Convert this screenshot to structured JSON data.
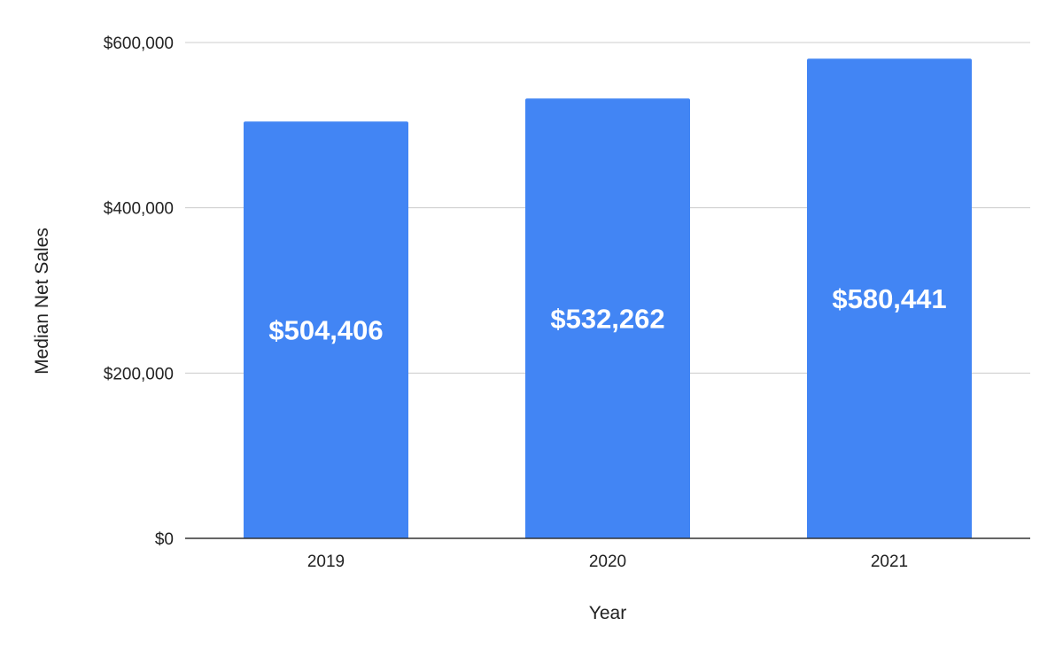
{
  "chart_data": {
    "type": "bar",
    "categories": [
      "2019",
      "2020",
      "2021"
    ],
    "values": [
      504406,
      532262,
      580441
    ],
    "data_labels": [
      "$504,406",
      "$532,262",
      "$580,441"
    ],
    "xlabel": "Year",
    "ylabel": "Median Net Sales",
    "ylim": [
      0,
      600000
    ],
    "yticks": [
      0,
      200000,
      400000,
      600000
    ],
    "ytick_labels": [
      "$0",
      "$200,000",
      "$400,000",
      "$600,000"
    ],
    "grid": true,
    "legend": "none",
    "bar_color": "#4285f4",
    "gridline_color": "#cccccc",
    "baseline_color": "#333333"
  }
}
